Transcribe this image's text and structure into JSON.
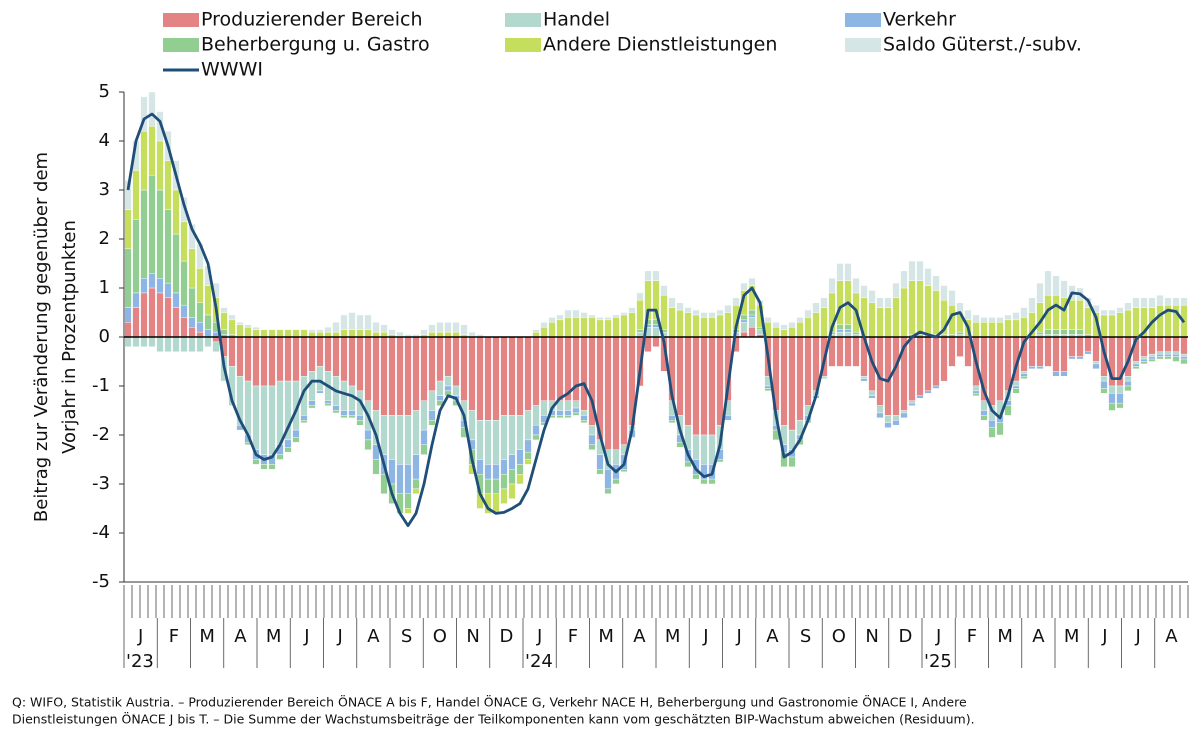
{
  "chart_data": {
    "type": "stacked-bar-line",
    "ylabel": [
      "Beitrag zur Veränderung gegenüber dem",
      "Vorjahr in Prozentpunkten"
    ],
    "ylim": [
      -5,
      5
    ],
    "yticks": [
      -5,
      -4,
      -3,
      -2,
      -1,
      0,
      1,
      2,
      3,
      4,
      5
    ],
    "grid": false,
    "month_labels": [
      "J",
      "F",
      "M",
      "A",
      "M",
      "J",
      "J",
      "A",
      "S",
      "O",
      "N",
      "D",
      "J",
      "F",
      "M",
      "A",
      "M",
      "J",
      "J",
      "A",
      "S",
      "O",
      "N",
      "D",
      "J",
      "F",
      "M",
      "A",
      "M",
      "J",
      "J",
      "A"
    ],
    "year_labels": [
      "'23",
      "'24",
      "'25"
    ],
    "series": [
      {
        "name": "Produzierender Bereich",
        "color": "#e38383",
        "values": [
          0.3,
          0.6,
          0.9,
          1.0,
          0.9,
          0.8,
          0.6,
          0.4,
          0.2,
          0.1,
          0.0,
          -0.1,
          -0.4,
          -0.6,
          -0.8,
          -0.9,
          -1.0,
          -1.0,
          -1.0,
          -0.9,
          -0.9,
          -0.9,
          -0.8,
          -0.7,
          -0.6,
          -0.7,
          -0.8,
          -0.9,
          -1.0,
          -1.1,
          -1.3,
          -1.5,
          -1.6,
          -1.6,
          -1.6,
          -1.6,
          -1.5,
          -1.3,
          -1.1,
          -0.9,
          -0.8,
          -1.0,
          -1.3,
          -1.5,
          -1.7,
          -1.7,
          -1.7,
          -1.6,
          -1.6,
          -1.6,
          -1.5,
          -1.4,
          -1.3,
          -1.3,
          -1.3,
          -1.3,
          -1.3,
          -1.5,
          -1.8,
          -2.1,
          -2.3,
          -2.3,
          -2.2,
          -1.8,
          -1.0,
          -0.3,
          -0.2,
          -0.7,
          -1.3,
          -1.6,
          -1.8,
          -2.0,
          -2.0,
          -2.0,
          -1.8,
          -1.3,
          -0.3,
          0.1,
          0.2,
          0.05,
          -0.8,
          -1.5,
          -1.8,
          -1.9,
          -1.7,
          -1.4,
          -1.1,
          -0.8,
          -0.6,
          -0.6,
          -0.6,
          -0.6,
          -0.8,
          -1.1,
          -1.4,
          -1.6,
          -1.6,
          -1.5,
          -1.3,
          -1.2,
          -1.1,
          -1.0,
          -0.9,
          -0.6,
          -0.4,
          -0.6,
          -1.0,
          -1.3,
          -1.4,
          -1.3,
          -1.1,
          -0.9,
          -0.7,
          -0.6,
          -0.6,
          -0.6,
          -0.7,
          -0.7,
          -0.4,
          -0.4,
          -0.3,
          -0.5,
          -0.8,
          -1.0,
          -1.0,
          -0.8,
          -0.5,
          -0.4,
          -0.35,
          -0.3,
          -0.3,
          -0.3,
          -0.35
        ]
      },
      {
        "name": "Handel",
        "color": "#b3d8cd",
        "values": [
          -0.2,
          -0.2,
          -0.2,
          -0.2,
          -0.3,
          -0.3,
          -0.3,
          -0.3,
          -0.3,
          -0.3,
          -0.2,
          -0.2,
          -0.5,
          -0.8,
          -1.0,
          -1.1,
          -1.3,
          -1.4,
          -1.4,
          -1.3,
          -1.2,
          -1.0,
          -0.8,
          -0.6,
          -0.5,
          -0.6,
          -0.6,
          -0.6,
          -0.5,
          -0.5,
          -0.6,
          -0.7,
          -0.8,
          -0.9,
          -1.0,
          -1.0,
          -0.9,
          -0.6,
          -0.4,
          -0.3,
          -0.2,
          -0.2,
          -0.4,
          -0.6,
          -0.8,
          -0.9,
          -0.9,
          -0.9,
          -0.8,
          -0.7,
          -0.6,
          -0.4,
          -0.3,
          -0.2,
          -0.2,
          -0.2,
          -0.15,
          -0.1,
          -0.2,
          -0.3,
          -0.4,
          -0.3,
          -0.2,
          -0.1,
          0.1,
          0.2,
          0.2,
          0.1,
          -0.3,
          -0.4,
          -0.5,
          -0.5,
          -0.6,
          -0.6,
          -0.5,
          -0.3,
          0.1,
          0.2,
          0.2,
          0.1,
          -0.2,
          -0.3,
          -0.4,
          -0.4,
          -0.3,
          -0.2,
          -0.1,
          -0.05,
          0.05,
          0.1,
          0.1,
          0.05,
          -0.05,
          -0.1,
          -0.15,
          -0.15,
          -0.1,
          -0.05,
          -0.05,
          0,
          0,
          0,
          0,
          0,
          0.05,
          0,
          -0.1,
          -0.2,
          -0.3,
          -0.3,
          -0.2,
          -0.1,
          -0.05,
          0,
          0.05,
          0.05,
          0.05,
          0.05,
          0.05,
          0.05,
          0,
          -0.05,
          -0.1,
          -0.15,
          -0.15,
          -0.1,
          -0.05,
          -0.05,
          -0.05,
          -0.05,
          -0.05,
          -0.05,
          -0.05
        ]
      },
      {
        "name": "Verkehr",
        "color": "#8eb6e4",
        "values": [
          0.3,
          0.3,
          0.3,
          0.3,
          0.3,
          0.3,
          0.3,
          0.25,
          0.2,
          0.2,
          0.15,
          0.1,
          0.05,
          0,
          -0.1,
          -0.15,
          -0.2,
          -0.2,
          -0.2,
          -0.2,
          -0.15,
          -0.15,
          -0.1,
          -0.1,
          -0.05,
          -0.05,
          -0.1,
          -0.1,
          -0.1,
          -0.1,
          -0.2,
          -0.3,
          -0.4,
          -0.5,
          -0.6,
          -0.6,
          -0.5,
          -0.3,
          -0.2,
          -0.1,
          -0.1,
          -0.1,
          -0.15,
          -0.2,
          -0.3,
          -0.3,
          -0.3,
          -0.3,
          -0.3,
          -0.3,
          -0.25,
          -0.2,
          -0.15,
          -0.1,
          -0.1,
          -0.1,
          -0.1,
          -0.1,
          -0.2,
          -0.3,
          -0.4,
          -0.3,
          -0.3,
          -0.15,
          0,
          0.05,
          0.05,
          0,
          -0.1,
          -0.15,
          -0.25,
          -0.3,
          -0.3,
          -0.3,
          -0.2,
          -0.1,
          0,
          0.05,
          0.05,
          0,
          -0.05,
          -0.1,
          -0.15,
          -0.15,
          -0.1,
          -0.1,
          -0.05,
          0,
          0,
          0.05,
          0.05,
          0,
          -0.05,
          -0.05,
          -0.1,
          -0.1,
          -0.1,
          -0.1,
          -0.05,
          -0.05,
          -0.05,
          -0.05,
          0,
          0,
          0,
          0,
          -0.05,
          -0.1,
          -0.15,
          -0.15,
          -0.1,
          -0.05,
          -0.05,
          -0.05,
          -0.05,
          0,
          -0.1,
          -0.1,
          -0.05,
          -0.05,
          -0.05,
          -0.1,
          -0.15,
          -0.2,
          -0.2,
          -0.1,
          -0.05,
          -0.05,
          -0.05,
          -0.05,
          -0.05,
          -0.05,
          -0.05
        ]
      },
      {
        "name": "Beherbergung u. Gastro",
        "color": "#92cd92",
        "values": [
          1.2,
          1.5,
          1.8,
          2.0,
          1.8,
          1.5,
          1.2,
          0.9,
          0.6,
          0.4,
          0.3,
          0.2,
          0.1,
          0.05,
          0,
          -0.05,
          -0.1,
          -0.1,
          -0.1,
          -0.1,
          -0.1,
          -0.1,
          -0.05,
          -0.05,
          0,
          -0.05,
          -0.05,
          -0.05,
          -0.05,
          -0.1,
          -0.2,
          -0.3,
          -0.4,
          -0.4,
          -0.4,
          -0.3,
          -0.2,
          -0.2,
          -0.1,
          -0.1,
          -0.1,
          -0.1,
          -0.2,
          -0.3,
          -0.4,
          -0.3,
          -0.3,
          -0.3,
          -0.3,
          -0.2,
          -0.15,
          -0.1,
          -0.05,
          -0.05,
          -0.05,
          -0.05,
          -0.05,
          -0.05,
          -0.1,
          -0.1,
          -0.1,
          -0.1,
          -0.05,
          0,
          0.05,
          0.1,
          0.1,
          0.05,
          -0.05,
          -0.1,
          -0.1,
          -0.1,
          -0.1,
          -0.1,
          -0.05,
          0,
          0.05,
          0.1,
          0.1,
          0.05,
          -0.05,
          -0.2,
          -0.3,
          -0.2,
          -0.1,
          -0.05,
          0,
          0,
          0.05,
          0.1,
          0.1,
          0.05,
          0,
          0,
          0,
          0,
          0,
          0,
          0.05,
          0.05,
          0.05,
          0.05,
          0.05,
          0.05,
          0.05,
          0,
          -0.05,
          -0.1,
          -0.2,
          -0.25,
          -0.2,
          -0.1,
          -0.05,
          0,
          0.05,
          0.1,
          0.1,
          0.1,
          0.1,
          0.1,
          0.05,
          0,
          -0.1,
          -0.15,
          -0.1,
          -0.1,
          -0.05,
          -0.05,
          -0.05,
          -0.05,
          -0.05,
          -0.1,
          -0.1
        ]
      },
      {
        "name": "Andere Dienstleistungen",
        "color": "#c6de5e",
        "values": [
          0.8,
          1.0,
          1.2,
          1.0,
          1.0,
          1.0,
          0.9,
          0.8,
          0.8,
          0.7,
          0.6,
          0.5,
          0.35,
          0.3,
          0.25,
          0.2,
          0.15,
          0.15,
          0.15,
          0.15,
          0.15,
          0.15,
          0.15,
          0.1,
          0.1,
          0.1,
          0.1,
          0.15,
          0.15,
          0.15,
          0.15,
          0.1,
          0.1,
          0.05,
          0,
          -0.1,
          -0.1,
          0.05,
          0.1,
          0.1,
          0.1,
          0.1,
          0.05,
          -0.2,
          -0.3,
          -0.4,
          -0.4,
          -0.3,
          -0.3,
          -0.2,
          -0.1,
          0.1,
          0.2,
          0.3,
          0.35,
          0.4,
          0.4,
          0.4,
          0.4,
          0.35,
          0.35,
          0.4,
          0.45,
          0.5,
          0.6,
          0.8,
          0.8,
          0.7,
          0.6,
          0.55,
          0.5,
          0.45,
          0.4,
          0.4,
          0.45,
          0.5,
          0.5,
          0.5,
          0.5,
          0.45,
          0.3,
          0.2,
          0.15,
          0.2,
          0.3,
          0.4,
          0.5,
          0.6,
          0.8,
          0.9,
          0.9,
          0.8,
          0.8,
          0.7,
          0.6,
          0.6,
          0.8,
          1.0,
          1.1,
          1.1,
          1.0,
          0.9,
          0.7,
          0.6,
          0.4,
          0.35,
          0.3,
          0.3,
          0.3,
          0.3,
          0.35,
          0.35,
          0.4,
          0.5,
          0.6,
          0.7,
          0.7,
          0.65,
          0.6,
          0.6,
          0.55,
          0.5,
          0.45,
          0.45,
          0.5,
          0.55,
          0.6,
          0.6,
          0.6,
          0.65,
          0.65,
          0.65,
          0.65
        ]
      },
      {
        "name": "Saldo Güterst./-subv.",
        "color": "#d6e6e6",
        "values": [
          0.6,
          0.6,
          0.7,
          0.7,
          0.6,
          0.6,
          0.6,
          0.5,
          0.5,
          0.5,
          0.4,
          0.3,
          0.1,
          0.1,
          0.05,
          0.05,
          0.05,
          0,
          0,
          0,
          0,
          0,
          0,
          0.05,
          0.05,
          0.1,
          0.2,
          0.3,
          0.35,
          0.3,
          0.3,
          0.2,
          0.15,
          0.1,
          0.1,
          0.05,
          0.05,
          0.1,
          0.15,
          0.2,
          0.2,
          0.2,
          0.2,
          0.1,
          0.05,
          0,
          0,
          0,
          0,
          0,
          0,
          0.05,
          0.1,
          0.1,
          0.1,
          0.15,
          0.15,
          0.1,
          0.05,
          0.05,
          0.05,
          0.05,
          0.05,
          0.1,
          0.15,
          0.2,
          0.2,
          0.2,
          0.2,
          0.15,
          0.1,
          0.1,
          0.1,
          0.1,
          0.1,
          0.15,
          0.15,
          0.15,
          0.15,
          0.1,
          0.1,
          0.1,
          0.1,
          0.1,
          0.1,
          0.15,
          0.2,
          0.2,
          0.3,
          0.35,
          0.35,
          0.3,
          0.25,
          0.25,
          0.2,
          0.2,
          0.3,
          0.35,
          0.4,
          0.4,
          0.35,
          0.3,
          0.3,
          0.3,
          0.2,
          0.2,
          0.15,
          0.1,
          0.1,
          0.1,
          0.1,
          0.15,
          0.2,
          0.3,
          0.4,
          0.5,
          0.4,
          0.35,
          0.3,
          0.25,
          0.2,
          0.15,
          0.1,
          0.1,
          0.1,
          0.15,
          0.2,
          0.2,
          0.2,
          0.2,
          0.15,
          0.15,
          0.15
        ]
      }
    ],
    "line": {
      "name": "WWWI",
      "color": "#1f4e79",
      "values": [
        3.0,
        4.0,
        4.45,
        4.55,
        4.4,
        3.9,
        3.3,
        2.7,
        2.2,
        1.9,
        1.5,
        0.6,
        -0.6,
        -1.3,
        -1.7,
        -2.0,
        -2.4,
        -2.5,
        -2.45,
        -2.2,
        -1.85,
        -1.5,
        -1.1,
        -0.9,
        -0.9,
        -1.0,
        -1.1,
        -1.15,
        -1.2,
        -1.3,
        -1.6,
        -2.0,
        -2.6,
        -3.2,
        -3.6,
        -3.85,
        -3.6,
        -3.0,
        -2.2,
        -1.5,
        -1.2,
        -1.25,
        -1.6,
        -2.5,
        -3.2,
        -3.5,
        -3.6,
        -3.58,
        -3.5,
        -3.4,
        -3.1,
        -2.5,
        -1.9,
        -1.45,
        -1.25,
        -1.15,
        -1.0,
        -0.95,
        -1.3,
        -2.0,
        -2.6,
        -2.75,
        -2.6,
        -1.9,
        -0.7,
        0.55,
        0.55,
        -0.1,
        -1.2,
        -1.9,
        -2.4,
        -2.7,
        -2.85,
        -2.8,
        -2.2,
        -1.0,
        0.2,
        0.85,
        1.0,
        0.7,
        -0.4,
        -1.6,
        -2.45,
        -2.35,
        -2.1,
        -1.7,
        -1.2,
        -0.5,
        0.2,
        0.6,
        0.7,
        0.55,
        0.0,
        -0.5,
        -0.85,
        -0.9,
        -0.6,
        -0.2,
        0.0,
        0.1,
        0.05,
        0.0,
        0.15,
        0.45,
        0.5,
        0.2,
        -0.5,
        -1.1,
        -1.5,
        -1.65,
        -1.2,
        -0.6,
        -0.1,
        0.1,
        0.3,
        0.55,
        0.65,
        0.55,
        0.9,
        0.88,
        0.75,
        0.4,
        -0.3,
        -0.85,
        -0.85,
        -0.5,
        -0.05,
        0.1,
        0.3,
        0.45,
        0.55,
        0.52,
        0.3
      ]
    },
    "source_note": [
      "Q: WIFO, Statistik Austria. – Produzierender Bereich ÖNACE A bis F, Handel ÖNACE G, Verkehr NACE H, Beherbergung und Gastronomie ÖNACE I, Andere",
      "Dienstleistungen ÖNACE  J bis T. – Die Summe der Wachstumsbeiträge der Teilkomponenten kann vom geschätzten BIP-Wachstum abweichen (Residuum)."
    ]
  }
}
